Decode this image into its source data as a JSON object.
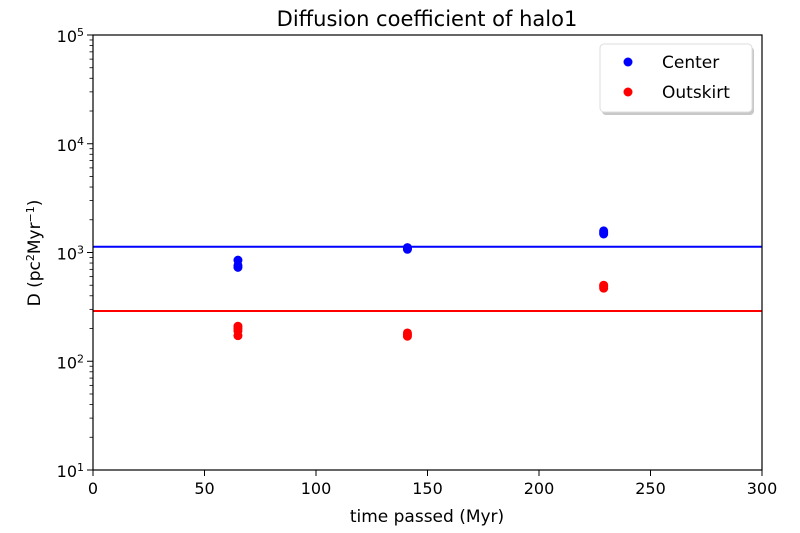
{
  "chart_data": {
    "type": "scatter",
    "title": "Diffusion coefficient of halo1",
    "xlabel": "time passed (Myr)",
    "ylabel": {
      "base": "D (pc",
      "sup1": "2",
      "mid": "Myr",
      "sup2": "−1",
      "end": ")"
    },
    "xlim": [
      0,
      300
    ],
    "ylim": [
      10,
      100000
    ],
    "yscale": "log",
    "x_ticks": [
      0,
      50,
      100,
      150,
      200,
      250,
      300
    ],
    "y_ticks": [
      {
        "value": 10,
        "base": "10",
        "exp": "1"
      },
      {
        "value": 100,
        "base": "10",
        "exp": "2"
      },
      {
        "value": 1000,
        "base": "10",
        "exp": "3"
      },
      {
        "value": 10000,
        "base": "10",
        "exp": "4"
      },
      {
        "value": 100000,
        "base": "10",
        "exp": "5"
      }
    ],
    "grid": false,
    "legend_position": "top-right",
    "series": [
      {
        "name": "Center",
        "color": "#0000ff",
        "points": [
          {
            "x": 65,
            "y": 850
          },
          {
            "x": 65,
            "y": 760
          },
          {
            "x": 65,
            "y": 730
          },
          {
            "x": 141,
            "y": 1090
          },
          {
            "x": 141,
            "y": 1070
          },
          {
            "x": 141,
            "y": 1110
          },
          {
            "x": 229,
            "y": 1580
          },
          {
            "x": 229,
            "y": 1520
          },
          {
            "x": 229,
            "y": 1480
          }
        ],
        "hline": 1130
      },
      {
        "name": "Outskirt",
        "color": "#ff0000",
        "points": [
          {
            "x": 65,
            "y": 210
          },
          {
            "x": 65,
            "y": 200
          },
          {
            "x": 65,
            "y": 190
          },
          {
            "x": 65,
            "y": 172
          },
          {
            "x": 141,
            "y": 182
          },
          {
            "x": 141,
            "y": 175
          },
          {
            "x": 141,
            "y": 170
          },
          {
            "x": 229,
            "y": 500
          },
          {
            "x": 229,
            "y": 490
          },
          {
            "x": 229,
            "y": 470
          }
        ],
        "hline": 290
      }
    ]
  }
}
